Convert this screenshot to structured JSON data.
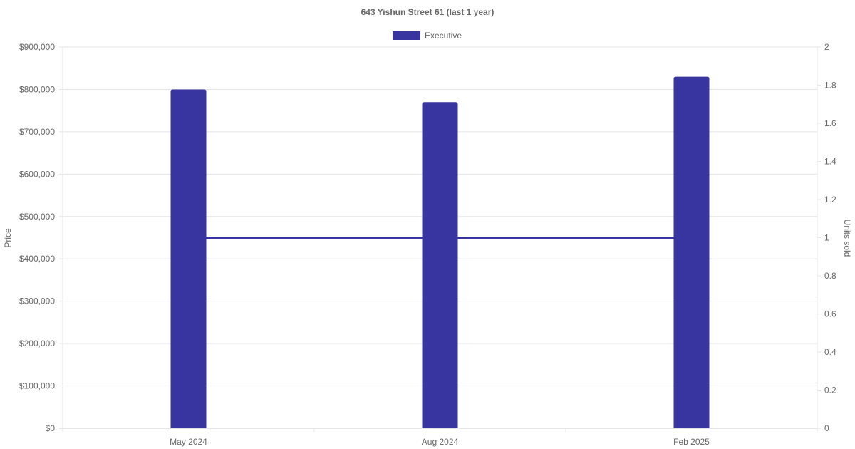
{
  "chart_data": {
    "type": "bar",
    "title": "643 Yishun Street 61 (last 1 year)",
    "categories": [
      "May 2024",
      "Aug 2024",
      "Feb 2025"
    ],
    "series": [
      {
        "name": "Executive",
        "type": "bar",
        "axis": "left",
        "values": [
          800000,
          770000,
          830000
        ],
        "color": "#3834a0"
      },
      {
        "type": "line",
        "axis": "right",
        "values": [
          1,
          1,
          1
        ],
        "color": "#3834a0"
      }
    ],
    "ylabel": "Price",
    "y2label": "Units sold",
    "ylim": [
      0,
      900000
    ],
    "y2lim": [
      0,
      2
    ],
    "yticks": [
      "$0",
      "$100,000",
      "$200,000",
      "$300,000",
      "$400,000",
      "$500,000",
      "$600,000",
      "$700,000",
      "$800,000",
      "$900,000"
    ],
    "y2ticks": [
      "0",
      "0.2",
      "0.4",
      "0.6",
      "0.8",
      "1",
      "1.2",
      "1.4",
      "1.6",
      "1.8",
      "2"
    ],
    "grid": true,
    "legend": "top"
  }
}
